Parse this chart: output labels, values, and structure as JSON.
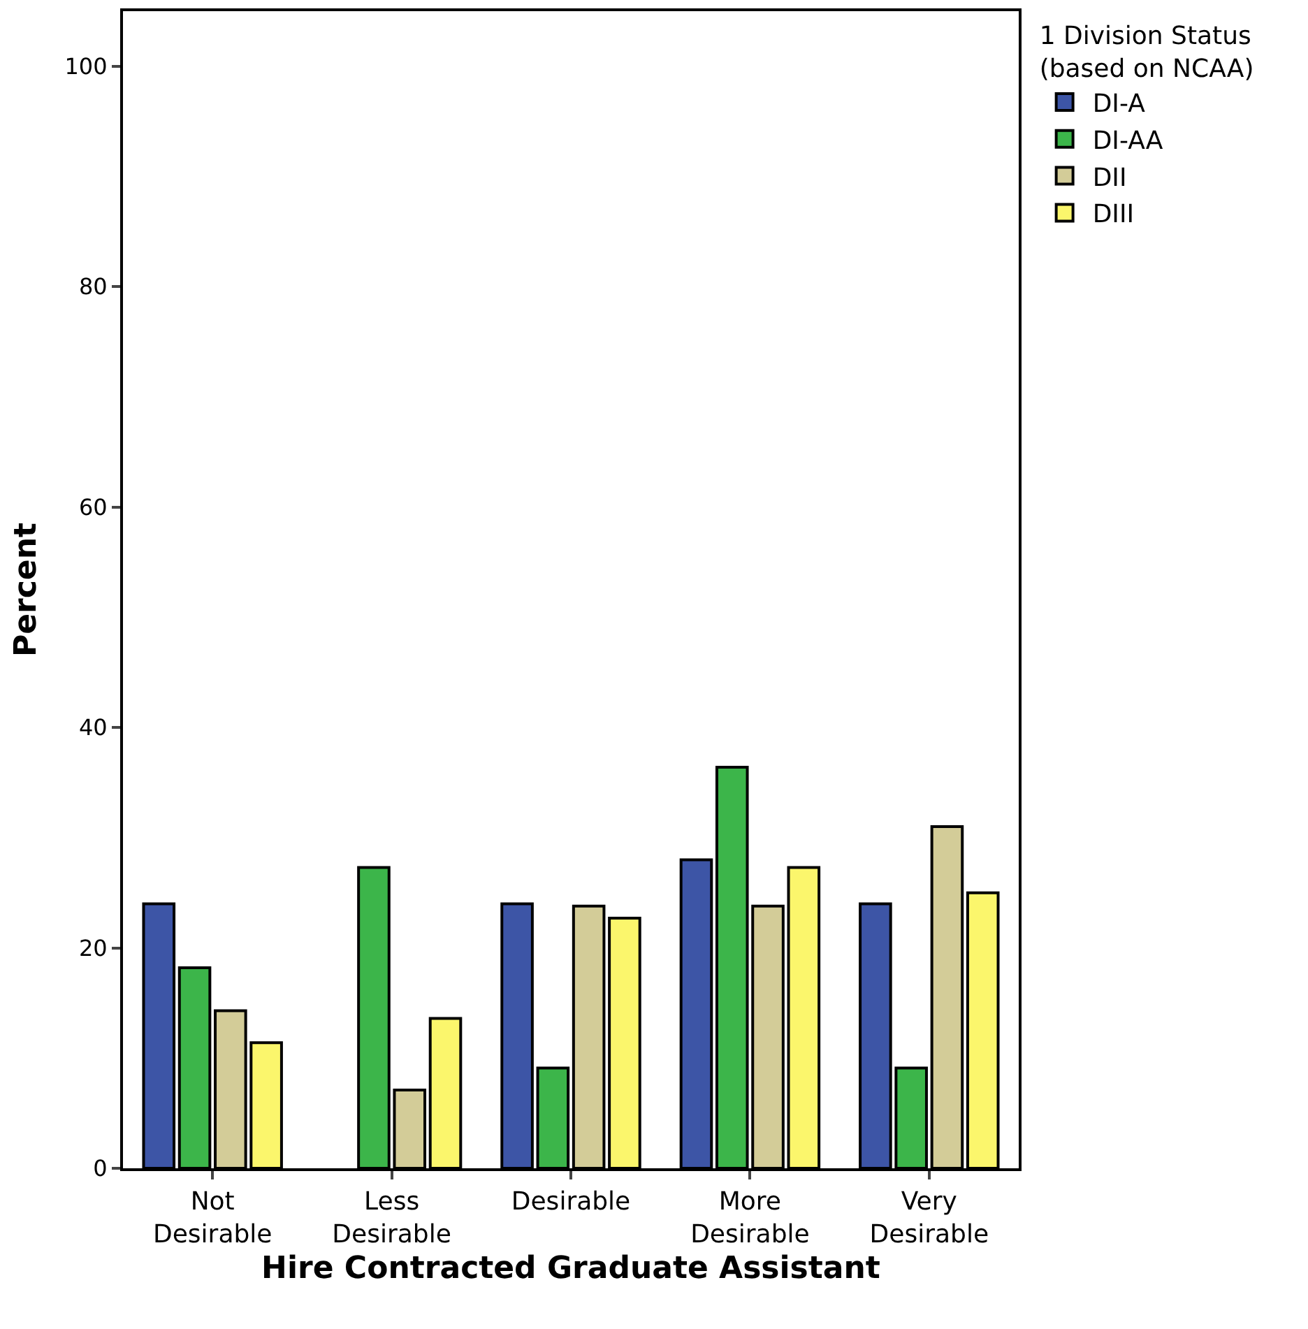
{
  "chart_data": {
    "type": "bar",
    "xlabel": "Hire Contracted Graduate Assistant",
    "ylabel": "Percent",
    "legend_title": "1 Division Status\n(based on NCAA)",
    "categories": [
      "Not\nDesirable",
      "Less\nDesirable",
      "Desirable",
      "More\nDesirable",
      "Very\nDesirable"
    ],
    "series": [
      {
        "name": "DI-A",
        "color": "#3d55a6",
        "values": [
          24.0,
          null,
          24.0,
          28.0,
          24.0
        ]
      },
      {
        "name": "DI-AA",
        "color": "#3cb54a",
        "values": [
          18.2,
          27.3,
          9.1,
          36.4,
          9.1
        ]
      },
      {
        "name": "DII",
        "color": "#d3cc98",
        "values": [
          14.3,
          7.1,
          23.8,
          23.8,
          31.0
        ]
      },
      {
        "name": "DIII",
        "color": "#fbf66c",
        "values": [
          11.4,
          13.6,
          22.7,
          27.3,
          25.0
        ]
      }
    ],
    "ylim": [
      0,
      105
    ],
    "yticks": [
      0,
      20,
      40,
      60,
      80,
      100
    ],
    "grid": false,
    "legend": "top right"
  }
}
